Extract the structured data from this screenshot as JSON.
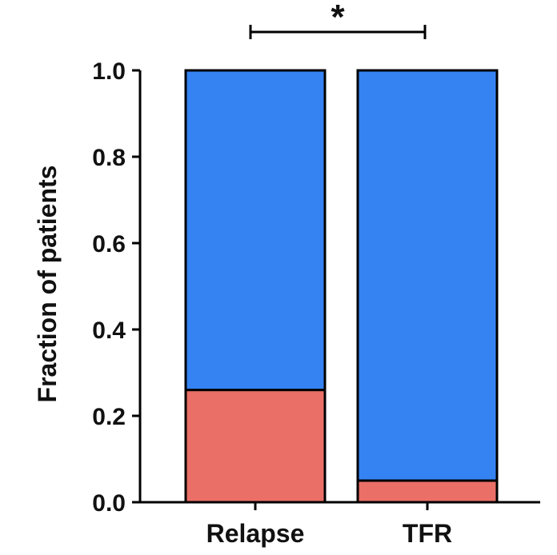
{
  "chart_data": {
    "type": "bar",
    "stacked": true,
    "categories": [
      "Relapse",
      "TFR"
    ],
    "series": [
      {
        "values": [
          0.26,
          0.05
        ],
        "color": "#ea6f67"
      },
      {
        "values": [
          0.74,
          0.95
        ],
        "color": "#3583f3"
      }
    ],
    "ylabel": "Fraction of patients",
    "ylim": [
      0,
      1.0
    ],
    "yticks": [
      "0.0",
      "0.2",
      "0.4",
      "0.6",
      "0.8",
      "1.0"
    ],
    "grid": false,
    "annotations": [
      {
        "text": "*",
        "between": [
          "Relapse",
          "TFR"
        ]
      }
    ]
  }
}
